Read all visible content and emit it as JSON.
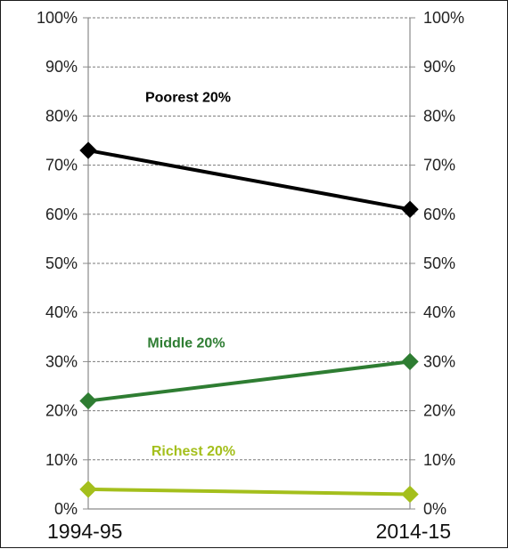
{
  "chart_data": {
    "type": "line",
    "title": "",
    "xlabel": "",
    "ylabel": "",
    "categories": [
      "1994-95",
      "2014-15"
    ],
    "ylim": [
      0,
      100
    ],
    "y_ticks": [
      "0%",
      "10%",
      "20%",
      "30%",
      "40%",
      "50%",
      "60%",
      "70%",
      "80%",
      "90%",
      "100%"
    ],
    "grid": "horizontal dashed",
    "legend": "inline labels",
    "series": [
      {
        "name": "Poorest 20%",
        "values": [
          73,
          61
        ],
        "color": "#000000",
        "marker": "diamond"
      },
      {
        "name": "Middle 20%",
        "values": [
          22,
          30
        ],
        "color": "#2e7d32",
        "marker": "diamond"
      },
      {
        "name": "Richest 20%",
        "values": [
          4,
          3
        ],
        "color": "#a4bf1c",
        "marker": "diamond"
      }
    ]
  }
}
